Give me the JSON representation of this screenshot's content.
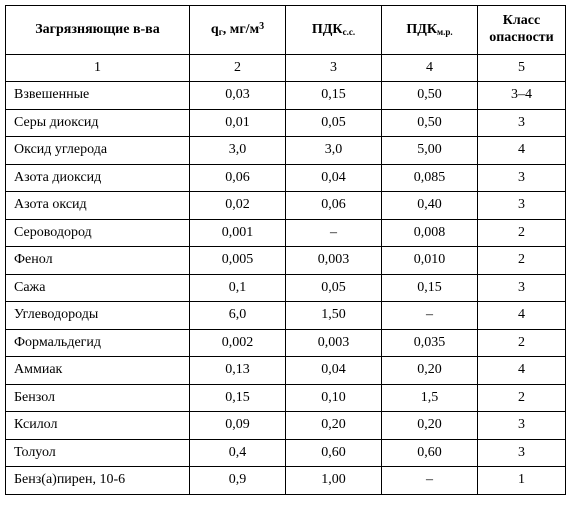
{
  "table": {
    "header": {
      "col1": "Загрязняющие в-ва",
      "col2_base": "q",
      "col2_sub": "г",
      "col2_rest": ", мг/м",
      "col2_sup": "3",
      "col3_base": "ПДК",
      "col3_sub": "с.с.",
      "col4_base": "ПДК",
      "col4_sub": "м.р.",
      "col5_line1": "Класс",
      "col5_line2": "опасности"
    },
    "numbers": [
      "1",
      "2",
      "3",
      "4",
      "5"
    ],
    "rows": [
      [
        "Взвешенные",
        "0,03",
        "0,15",
        "0,50",
        "3–4"
      ],
      [
        "Серы диоксид",
        "0,01",
        "0,05",
        "0,50",
        "3"
      ],
      [
        "Оксид углерода",
        "3,0",
        "3,0",
        "5,00",
        "4"
      ],
      [
        "Азота диоксид",
        "0,06",
        "0,04",
        "0,085",
        "3"
      ],
      [
        "Азота оксид",
        "0,02",
        "0,06",
        "0,40",
        "3"
      ],
      [
        "Сероводород",
        "0,001",
        "–",
        "0,008",
        "2"
      ],
      [
        "Фенол",
        "0,005",
        "0,003",
        "0,010",
        "2"
      ],
      [
        "Сажа",
        "0,1",
        "0,05",
        "0,15",
        "3"
      ],
      [
        "Углеводороды",
        "6,0",
        "1,50",
        "–",
        "4"
      ],
      [
        "Формальдегид",
        "0,002",
        "0,003",
        "0,035",
        "2"
      ],
      [
        "Аммиак",
        "0,13",
        "0,04",
        "0,20",
        "4"
      ],
      [
        "Бензол",
        "0,15",
        "0,10",
        "1,5",
        "2"
      ],
      [
        "Ксилол",
        "0,09",
        "0,20",
        "0,20",
        "3"
      ],
      [
        "Толуол",
        "0,4",
        "0,60",
        "0,60",
        "3"
      ],
      [
        "Бенз(а)пирен, 10-6",
        "0,9",
        "1,00",
        "–",
        "1"
      ]
    ]
  }
}
